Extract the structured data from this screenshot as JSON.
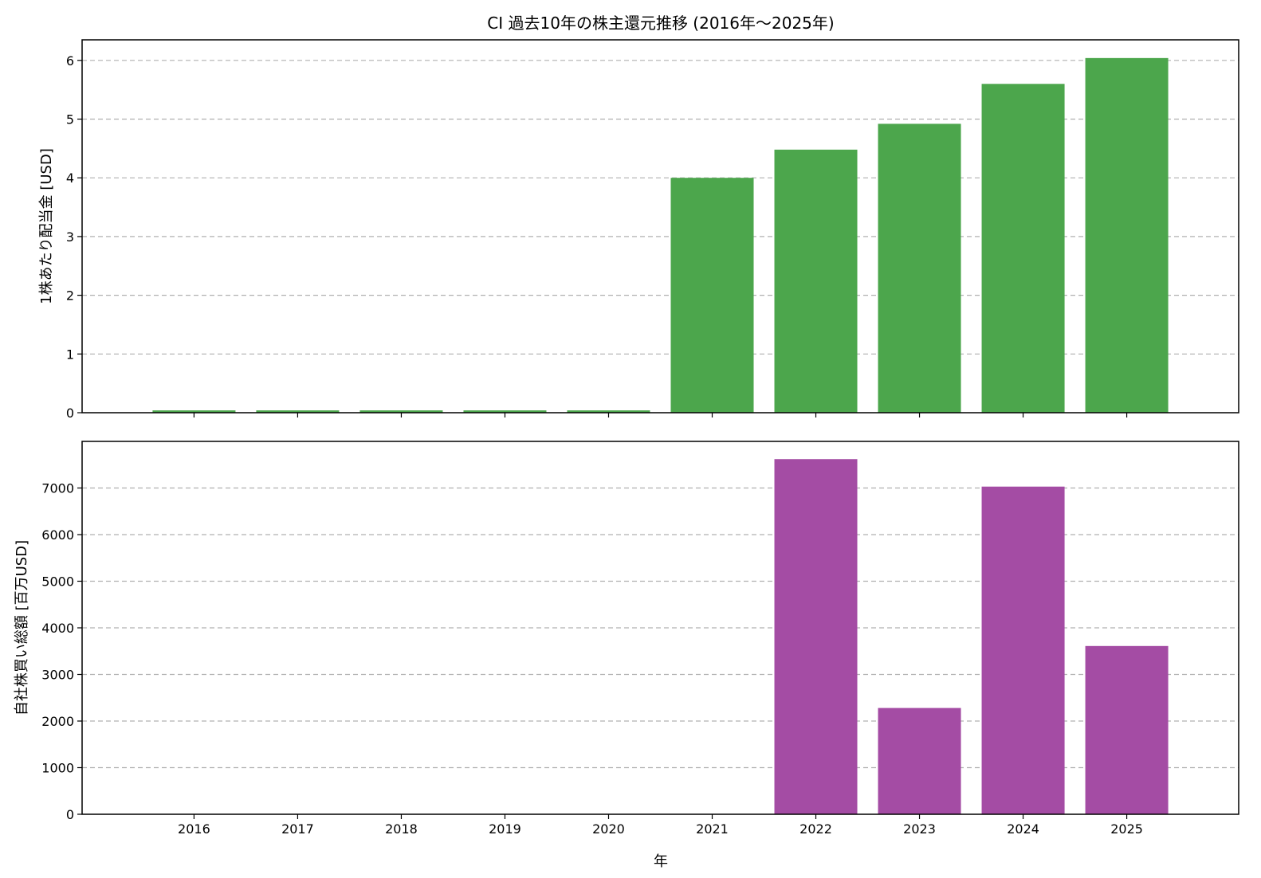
{
  "chart_data": {
    "title": "CI 過去10年の株主還元推移 (2016年〜2025年)",
    "xlabel": "年",
    "categories": [
      "2016",
      "2017",
      "2018",
      "2019",
      "2020",
      "2021",
      "2022",
      "2023",
      "2024",
      "2025"
    ],
    "panels": [
      {
        "type": "bar",
        "ylabel": "1株あたり配当金 [USD]",
        "color": "#4ca64c",
        "ylim": [
          0,
          6.35
        ],
        "yticks": [
          0,
          1,
          2,
          3,
          4,
          5,
          6
        ],
        "grid": true,
        "series": [
          {
            "values": [
              0.04,
              0.04,
              0.04,
              0.04,
              0.04,
              4.0,
              4.48,
              4.92,
              5.6,
              6.04
            ]
          }
        ]
      },
      {
        "type": "bar",
        "ylabel": "自社株買い総額 [百万USD]",
        "color": "#a44ca4",
        "ylim": [
          0,
          8000
        ],
        "yticks": [
          0,
          1000,
          2000,
          3000,
          4000,
          5000,
          6000,
          7000
        ],
        "grid": true,
        "series": [
          {
            "values": [
              0,
              0,
              0,
              0,
              0,
              0,
              7620,
              2280,
              7030,
              3610
            ]
          }
        ]
      }
    ]
  }
}
